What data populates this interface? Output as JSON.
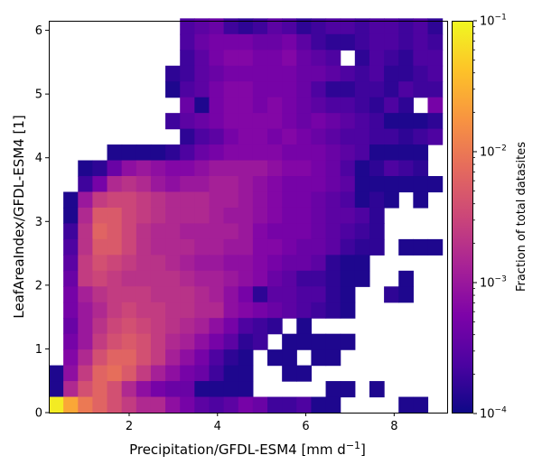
{
  "chart_data": {
    "type": "heatmap",
    "title": "",
    "xlabel": "Precipitation/GFDL-ESM4 [mm d",
    "xlabel_sup": "−1",
    "xlabel_end": "]",
    "ylabel": "LeafAreaIndex/GFDL-ESM4 [1]",
    "colorbar_label": "Fraction of total datasites",
    "colormap": "plasma",
    "color_scale": "log",
    "clim": [
      0.0001,
      0.1
    ],
    "xlim": [
      0.18,
      9.2
    ],
    "ylim": [
      0,
      6.15
    ],
    "x_ticks": [
      2,
      4,
      6,
      8
    ],
    "x_tick_labels": [
      "2",
      "4",
      "6",
      "8"
    ],
    "y_ticks": [
      0,
      1,
      2,
      3,
      4,
      5,
      6
    ],
    "y_tick_labels": [
      "0",
      "1",
      "2",
      "3",
      "4",
      "5",
      "6"
    ],
    "colorbar_ticks": [
      {
        "base": "10",
        "exp": "−4",
        "log": -4
      },
      {
        "base": "10",
        "exp": "−3",
        "log": -3
      },
      {
        "base": "10",
        "exp": "−2",
        "log": -2
      },
      {
        "base": "10",
        "exp": "−1",
        "log": -1
      }
    ],
    "grid": false,
    "bins": {
      "x_start": 0.18,
      "x_step": 0.33,
      "y_start": 0,
      "y_step": 0.2475,
      "n_cols": 27,
      "n_rows": 25
    },
    "note_levels": "cell values given as log10(fraction of total datasites); rows listed from top (y≈6.1) to bottom (y≈0)",
    "grid_log10": [
      [
        "",
        "",
        "",
        "",
        "",
        "",
        "",
        "",
        "",
        "-3.6",
        "-3.5",
        "-3.4",
        "-3.7",
        "-3.8",
        "-3.7",
        "-3.5",
        "-3.6",
        "-3.8",
        "-3.7",
        "-3.6",
        "-3.6",
        "-3.7",
        "-3.6",
        "-3.6",
        "-3.7",
        "-3.6",
        "-3.8"
      ],
      [
        "",
        "",
        "",
        "",
        "",
        "",
        "",
        "",
        "",
        "-3.6",
        "-3.4",
        "-3.3",
        "-3.3",
        "-3.3",
        "-3.4",
        "-3.4",
        "-3.3",
        "-3.5",
        "-3.7",
        "-3.8",
        "-3.8",
        "-3.7",
        "-3.6",
        "-3.6",
        "-3.7",
        "-3.6",
        "-3.7"
      ],
      [
        "",
        "",
        "",
        "",
        "",
        "",
        "",
        "",
        "",
        "-3.7",
        "-3.5",
        "-3.3",
        "-3.2",
        "-3.2",
        "-3.3",
        "-3.3",
        "-3.2",
        "-3.4",
        "-3.5",
        "-3.6",
        "",
        "-3.8",
        "-3.6",
        "-3.7",
        "-3.8",
        "-3.6",
        "-3.6"
      ],
      [
        "",
        "",
        "",
        "",
        "",
        "",
        "",
        "",
        "-3.8",
        "-3.7",
        "-3.5",
        "-3.4",
        "-3.3",
        "-3.3",
        "-3.3",
        "-3.3",
        "-3.3",
        "-3.4",
        "-3.4",
        "-3.5",
        "-3.6",
        "-3.7",
        "-3.6",
        "-3.8",
        "-3.8",
        "-3.7",
        "-3.6"
      ],
      [
        "",
        "",
        "",
        "",
        "",
        "",
        "",
        "",
        "-3.9",
        "-3.6",
        "-3.5",
        "-3.3",
        "-3.2",
        "-3.2",
        "-3.3",
        "-3.3",
        "-3.3",
        "-3.4",
        "-3.6",
        "-3.8",
        "-3.8",
        "-3.7",
        "-3.7",
        "-3.8",
        "-3.6",
        "-3.7",
        "-3.7"
      ],
      [
        "",
        "",
        "",
        "",
        "",
        "",
        "",
        "",
        "",
        "-3.4",
        "-3.9",
        "-3.3",
        "-3.2",
        "-3.2",
        "-3.3",
        "-3.2",
        "-3.3",
        "-3.4",
        "-3.5",
        "-3.6",
        "-3.6",
        "-3.7",
        "-3.8",
        "-3.6",
        "-3.8",
        "",
        "-3.3"
      ],
      [
        "",
        "",
        "",
        "",
        "",
        "",
        "",
        "",
        "-3.7",
        "-3.5",
        "-3.4",
        "-3.3",
        "-3.2",
        "-3.2",
        "-3.2",
        "-3.2",
        "-3.3",
        "-3.4",
        "-3.3",
        "-3.4",
        "-3.5",
        "-3.6",
        "-3.7",
        "-3.9",
        "-3.9",
        "-3.9",
        "-3.8"
      ],
      [
        "",
        "",
        "",
        "",
        "",
        "",
        "",
        "",
        "",
        "-3.8",
        "-3.6",
        "-3.5",
        "-3.3",
        "-3.2",
        "-3.2",
        "-3.3",
        "-3.2",
        "-3.3",
        "-3.4",
        "-3.5",
        "-3.6",
        "-3.6",
        "-3.7",
        "-3.7",
        "-3.8",
        "-3.7",
        "-3.6"
      ],
      [
        "",
        "",
        "",
        "",
        "-3.9",
        "-3.9",
        "-3.9",
        "-3.9",
        "-3.8",
        "-3.6",
        "-3.4",
        "-3.3",
        "-3.2",
        "-3.2",
        "-3.2",
        "-3.2",
        "-3.3",
        "-3.3",
        "-3.3",
        "-3.4",
        "-3.5",
        "-3.6",
        "-3.9",
        "-3.9",
        "-3.9",
        "-3.9",
        ""
      ],
      [
        "",
        "",
        "-3.9",
        "-3.8",
        "-3.4",
        "-3.1",
        "-3.0",
        "-3.1",
        "-3.2",
        "-3.2",
        "-3.1",
        "-3.0",
        "-3.0",
        "-3.0",
        "-3.0",
        "-3.1",
        "-3.2",
        "-3.2",
        "-3.3",
        "-3.4",
        "-3.6",
        "-3.9",
        "-3.8",
        "-3.6",
        "-3.7",
        "-3.8",
        ""
      ],
      [
        "",
        "",
        "-3.7",
        "-3.3",
        "-2.8",
        "-2.7",
        "-2.8",
        "-3.0",
        "-3.1",
        "-3.0",
        "-3.0",
        "-2.9",
        "-2.9",
        "-3.0",
        "-3.1",
        "-3.2",
        "-3.3",
        "-3.3",
        "-3.3",
        "-3.4",
        "-3.5",
        "-3.9",
        "-3.9",
        "-3.9",
        "-3.9",
        "-3.9",
        "-3.9"
      ],
      [
        "",
        "-3.9",
        "-3.0",
        "-2.6",
        "-2.5",
        "-2.5",
        "-2.6",
        "-2.7",
        "-2.8",
        "-2.8",
        "-2.8",
        "-2.9",
        "-2.9",
        "-3.0",
        "-3.1",
        "-3.2",
        "-3.3",
        "-3.3",
        "-3.4",
        "-3.5",
        "-3.6",
        "-3.9",
        "-3.8",
        "-3.9",
        "",
        "-3.9",
        ""
      ],
      [
        "",
        "-3.9",
        "-2.8",
        "-2.3",
        "-2.3",
        "-2.5",
        "-2.6",
        "-2.7",
        "-2.8",
        "-2.8",
        "-2.8",
        "-2.9",
        "-3.0",
        "-3.0",
        "-3.1",
        "-3.2",
        "-3.3",
        "-3.3",
        "-3.4",
        "-3.5",
        "-3.5",
        "-3.6",
        "-3.8",
        "",
        "",
        "",
        ""
      ],
      [
        "",
        "-3.7",
        "-2.7",
        "-2.2",
        "-2.3",
        "-2.5",
        "-2.7",
        "-2.8",
        "-2.8",
        "-2.9",
        "-2.9",
        "-2.9",
        "-2.9",
        "-3.0",
        "-3.2",
        "-3.3",
        "-3.3",
        "-3.3",
        "-3.4",
        "-3.5",
        "-3.6",
        "-3.7",
        "-3.8",
        "",
        "",
        "",
        ""
      ],
      [
        "",
        "-3.6",
        "-2.7",
        "-2.3",
        "-2.3",
        "-2.5",
        "-2.7",
        "-2.8",
        "-2.8",
        "-2.8",
        "-2.9",
        "-2.9",
        "-3.0",
        "-3.0",
        "-3.2",
        "-3.2",
        "-3.3",
        "-3.4",
        "-3.4",
        "-3.5",
        "-3.7",
        "-3.8",
        "-3.8",
        "",
        "-3.9",
        "-3.9",
        "-3.9"
      ],
      [
        "",
        "-3.5",
        "-2.6",
        "-2.4",
        "-2.5",
        "-2.6",
        "-2.7",
        "-2.7",
        "-2.8",
        "-2.9",
        "-3.0",
        "-3.0",
        "-3.1",
        "-3.1",
        "-3.2",
        "-3.3",
        "-3.4",
        "-3.4",
        "-3.5",
        "-3.8",
        "-3.9",
        "-3.9",
        "",
        "",
        "",
        "",
        ""
      ],
      [
        "",
        "-3.4",
        "-2.6",
        "-2.5",
        "-2.6",
        "-2.7",
        "-2.7",
        "-2.7",
        "-2.7",
        "-2.8",
        "-2.9",
        "-2.9",
        "-3.0",
        "-3.1",
        "-3.2",
        "-3.4",
        "-3.5",
        "-3.7",
        "-3.7",
        "-3.8",
        "-3.9",
        "-3.9",
        "",
        "",
        "-3.9",
        "",
        ""
      ],
      [
        "",
        "-3.3",
        "-2.9",
        "-2.7",
        "-2.6",
        "-2.6",
        "-2.6",
        "-2.7",
        "-2.7",
        "-2.7",
        "-2.8",
        "-2.9",
        "-3.1",
        "-3.3",
        "-3.8",
        "-3.5",
        "-3.5",
        "-3.6",
        "-3.6",
        "-3.8",
        "-3.9",
        "",
        "",
        "-3.8",
        "-3.9",
        "",
        ""
      ],
      [
        "",
        "-3.3",
        "-3.0",
        "-2.8",
        "-2.6",
        "-2.5",
        "-2.6",
        "-2.6",
        "-2.7",
        "-2.7",
        "-2.8",
        "-2.8",
        "-3.1",
        "-3.2",
        "-3.3",
        "-3.4",
        "-3.5",
        "-3.6",
        "-3.7",
        "-3.8",
        "-3.9",
        "",
        "",
        "",
        "",
        "",
        ""
      ],
      [
        "",
        "-3.4",
        "-3.0",
        "-2.7",
        "-2.5",
        "-2.4",
        "-2.5",
        "-2.6",
        "-2.7",
        "-2.8",
        "-2.9",
        "-3.1",
        "-3.3",
        "-3.6",
        "-3.7",
        "-3.8",
        "",
        "-3.9",
        "",
        "",
        "",
        "",
        "",
        "",
        "",
        "",
        ""
      ],
      [
        "",
        "-3.3",
        "-3.0",
        "-2.6",
        "-2.4",
        "-2.3",
        "-2.4",
        "-2.6",
        "-2.8",
        "-2.9",
        "-3.1",
        "-3.3",
        "-3.5",
        "-3.8",
        "-3.7",
        "",
        "-3.9",
        "-3.9",
        "-3.9",
        "-3.9",
        "-3.9",
        "",
        "",
        "",
        "",
        "",
        ""
      ],
      [
        "",
        "-3.2",
        "-2.8",
        "-2.4",
        "-2.2",
        "-2.2",
        "-2.4",
        "-2.6",
        "-2.9",
        "-3.1",
        "-3.3",
        "-3.6",
        "-3.8",
        "-3.9",
        "",
        "-3.9",
        "-3.9",
        "",
        "-3.9",
        "-3.9",
        "",
        "",
        "",
        "",
        "",
        "",
        ""
      ],
      [
        "-3.9",
        "-3.1",
        "-2.6",
        "-2.2",
        "-2.1",
        "-2.3",
        "-2.6",
        "-2.9",
        "-3.1",
        "-3.3",
        "-3.4",
        "-3.7",
        "-3.9",
        "-3.9",
        "",
        "",
        "-3.9",
        "-3.9",
        "",
        "",
        "",
        "",
        "",
        "",
        "",
        "",
        ""
      ],
      [
        "-3.9",
        "-2.8",
        "-2.4",
        "-2.2",
        "-2.4",
        "-2.8",
        "-3.1",
        "-3.3",
        "-3.4",
        "-3.4",
        "-3.9",
        "-3.9",
        "-3.9",
        "-3.9",
        "",
        "",
        "",
        "",
        "",
        "-3.9",
        "-3.9",
        "",
        "-3.9",
        "",
        "",
        "",
        ""
      ],
      [
        "-1.1",
        "-1.6",
        "-2.0",
        "-2.2",
        "-2.4",
        "-2.6",
        "-2.8",
        "-2.8",
        "-3.1",
        "-3.3",
        "-3.5",
        "-3.6",
        "-3.5",
        "-3.3",
        "-3.4",
        "-3.7",
        "-3.7",
        "-3.6",
        "-3.9",
        "-3.9",
        "",
        "",
        "",
        "",
        "-3.9",
        "-3.9",
        ""
      ]
    ]
  }
}
